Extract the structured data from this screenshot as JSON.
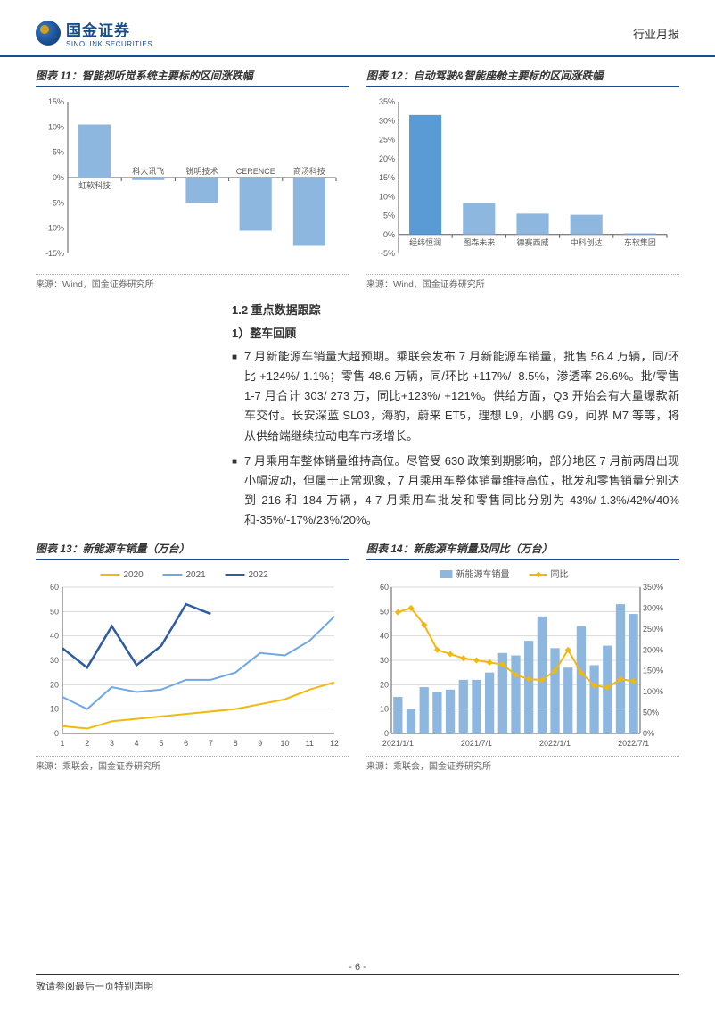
{
  "header": {
    "brand_cn": "国金证券",
    "brand_en": "SINOLINK SECURITIES",
    "doc_type": "行业月报"
  },
  "chart11": {
    "title": "图表 11：智能视听觉系统主要标的区间涨跌幅",
    "type": "bar",
    "categories": [
      "虹软科技",
      "科大讯飞",
      "锐明技术",
      "CERENCE",
      "商汤科技"
    ],
    "values": [
      10.5,
      -0.5,
      -5,
      -10.5,
      -13.5
    ],
    "ylim": [
      -15,
      15
    ],
    "ytick_step": 5,
    "y_format": "pct",
    "bar_color": "#8db7df",
    "first_bar_color": "#8db7df",
    "dark_bar_color": "#5b9bd5",
    "axis_color": "#595959",
    "label_fontsize": 9,
    "tick_fontsize": 9,
    "background": "#ffffff"
  },
  "chart12": {
    "title": "图表 12：自动驾驶&智能座舱主要标的区间涨跌幅",
    "type": "bar",
    "categories": [
      "经纬恒润",
      "图森未来",
      "德赛西威",
      "中科创达",
      "东软集团"
    ],
    "values": [
      31.5,
      8.3,
      5.5,
      5.2,
      0.3
    ],
    "ylim": [
      -5,
      35
    ],
    "ytick_step": 5,
    "y_format": "pct",
    "bar_colors": [
      "#5b9bd5",
      "#8db7df",
      "#8db7df",
      "#8db7df",
      "#8db7df"
    ],
    "axis_color": "#595959",
    "label_fontsize": 9,
    "tick_fontsize": 9,
    "background": "#ffffff"
  },
  "source_text": "来源：Wind，国金证券研究所",
  "source_text2": "来源：乘联会，国金证券研究所",
  "body": {
    "sec": "1.2 重点数据跟踪",
    "sub": "1）整车回顾",
    "p1": "7 月新能源车销量大超预期。乘联会发布 7 月新能源车销量，批售 56.4 万辆，同/环比 +124%/-1.1%；零售 48.6 万辆，同/环比 +117%/ -8.5%，渗透率 26.6%。批/零售 1-7 月合计 303/ 273 万，同比+123%/ +121%。供给方面，Q3 开始会有大量爆款新车交付。长安深蓝 SL03，海豹，蔚来 ET5，理想 L9，小鹏 G9，问界 M7 等等，将从供给端继续拉动电车市场增长。",
    "p2": "7 月乘用车整体销量维持高位。尽管受 630 政策到期影响，部分地区 7 月前两周出现小幅波动，但属于正常现象，7 月乘用车整体销量维持高位，批发和零售销量分别达到 216 和 184 万辆，4-7 月乘用车批发和零售同比分别为-43%/-1.3%/42%/40%和-35%/-17%/23%/20%。"
  },
  "chart13": {
    "title": "图表 13：新能源车销量（万台）",
    "type": "line",
    "x": [
      1,
      2,
      3,
      4,
      5,
      6,
      7,
      8,
      9,
      10,
      11,
      12
    ],
    "series": [
      {
        "name": "2020",
        "color": "#f2b90c",
        "width": 2,
        "values": [
          3,
          2,
          5,
          6,
          7,
          8,
          9,
          10,
          12,
          14,
          18,
          21
        ]
      },
      {
        "name": "2021",
        "color": "#6fa8e4",
        "width": 2,
        "values": [
          15,
          10,
          19,
          17,
          18,
          22,
          22,
          25,
          33,
          32,
          38,
          48
        ]
      },
      {
        "name": "2022",
        "color": "#2e5c9e",
        "width": 2.5,
        "values": [
          35,
          27,
          44,
          28,
          36,
          53,
          49,
          null,
          null,
          null,
          null,
          null
        ]
      }
    ],
    "ylim": [
      0,
      60
    ],
    "ytick_step": 10,
    "xlim": [
      1,
      12
    ],
    "grid_color": "#d9d9d9",
    "axis_color": "#595959",
    "legend_pos": "top",
    "tick_fontsize": 9
  },
  "chart14": {
    "title": "图表 14：新能源车销量及同比（万台）",
    "type": "bar+line",
    "x_labels": [
      "2021/1/1",
      "2021/7/1",
      "2022/1/1",
      "2022/7/1"
    ],
    "x_count": 19,
    "bars": {
      "name": "新能源车销量",
      "color": "#8db7df",
      "values": [
        15,
        10,
        19,
        17,
        18,
        22,
        22,
        25,
        33,
        32,
        38,
        48,
        35,
        27,
        44,
        28,
        36,
        53,
        49
      ]
    },
    "line": {
      "name": "同比",
      "color": "#f2b90c",
      "width": 2,
      "values": [
        290,
        300,
        260,
        200,
        190,
        180,
        175,
        170,
        165,
        140,
        130,
        128,
        150,
        200,
        145,
        115,
        110,
        130,
        125
      ]
    },
    "ylim_left": [
      0,
      60
    ],
    "ytick_left": 10,
    "ylim_right": [
      0,
      350
    ],
    "ytick_right": 50,
    "right_format": "pct",
    "grid_color": "#d9d9d9",
    "axis_color": "#595959",
    "tick_fontsize": 9,
    "legend_pos": "top"
  },
  "footer": {
    "page": "- 6 -",
    "note": "敬请参阅最后一页特别声明"
  }
}
